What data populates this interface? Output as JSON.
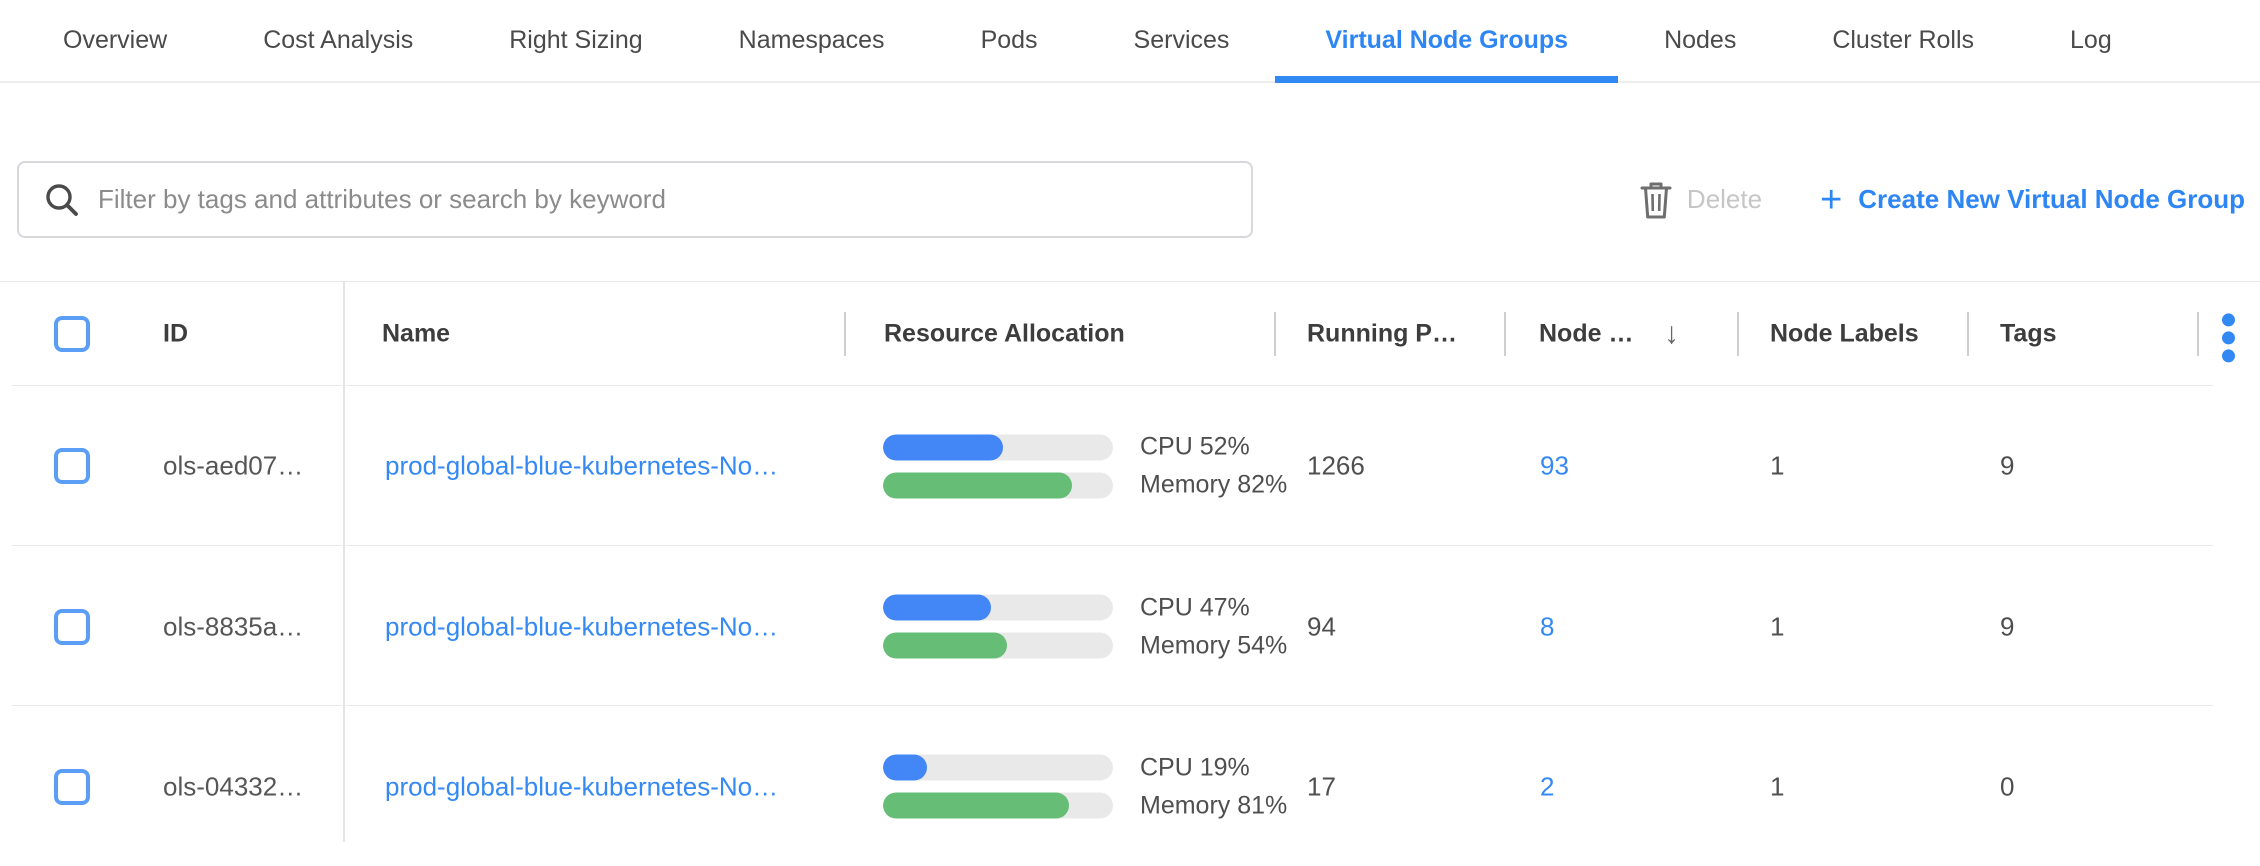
{
  "tabs": {
    "active": "Virtual Node Groups",
    "items": [
      {
        "label": "Overview"
      },
      {
        "label": "Cost Analysis"
      },
      {
        "label": "Right Sizing"
      },
      {
        "label": "Namespaces"
      },
      {
        "label": "Pods"
      },
      {
        "label": "Services"
      },
      {
        "label": "Virtual Node Groups"
      },
      {
        "label": "Nodes"
      },
      {
        "label": "Cluster Rolls"
      },
      {
        "label": "Log"
      }
    ]
  },
  "toolbar": {
    "search_placeholder": "Filter by tags and attributes or search by keyword",
    "delete_label": "Delete",
    "create_plus": "+",
    "create_label": "Create New Virtual Node Group"
  },
  "table": {
    "columns": {
      "id": "ID",
      "name": "Name",
      "resource": "Resource Allocation",
      "running_pods": "Running P…",
      "nodes": "Node …",
      "node_labels": "Node Labels",
      "tags": "Tags"
    },
    "sort_glyph": "↓",
    "rows": [
      {
        "id": "ols-aed07…",
        "name": "prod-global-blue-kubernetes-No…",
        "cpu_pct": 52,
        "cpu_label": "CPU 52%",
        "mem_pct": 82,
        "mem_label": "Memory 82%",
        "running_pods": "1266",
        "nodes": "93",
        "node_labels": "1",
        "tags": "9"
      },
      {
        "id": "ols-8835a…",
        "name": "prod-global-blue-kubernetes-No…",
        "cpu_pct": 47,
        "cpu_label": "CPU 47%",
        "mem_pct": 54,
        "mem_label": "Memory 54%",
        "running_pods": "94",
        "nodes": "8",
        "node_labels": "1",
        "tags": "9"
      },
      {
        "id": "ols-04332…",
        "name": "prod-global-blue-kubernetes-No…",
        "cpu_pct": 19,
        "cpu_label": "CPU 19%",
        "mem_pct": 81,
        "mem_label": "Memory 81%",
        "running_pods": "17",
        "nodes": "2",
        "node_labels": "1",
        "tags": "0"
      }
    ]
  },
  "colors": {
    "accent_blue": "#2e86f4",
    "link_blue": "#3589f5",
    "bar_blue": "#4287f5",
    "bar_green": "#65bd76",
    "bar_track": "#e9e9e9",
    "disabled_text": "#c6c6c6"
  }
}
